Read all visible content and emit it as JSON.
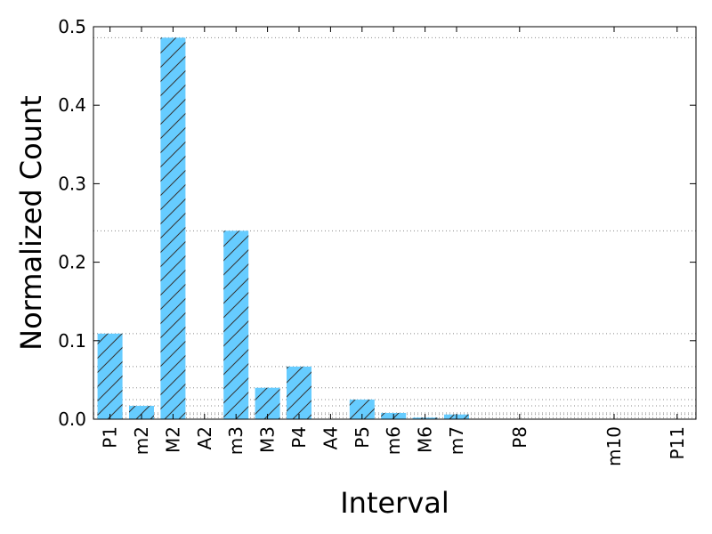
{
  "chart_data": {
    "type": "bar",
    "xlabel": "Interval",
    "ylabel": "Normalized Count",
    "ylim": [
      0,
      0.5
    ],
    "yticks": [
      "0.0",
      "0.1",
      "0.2",
      "0.3",
      "0.4",
      "0.5"
    ],
    "grid": "horizontal dotted lines at each bar height",
    "bar_color": "#66ccff",
    "hatch": "diagonal",
    "bars": [
      {
        "label": "P1",
        "value": 0.109
      },
      {
        "label": "m2",
        "value": 0.017
      },
      {
        "label": "M2",
        "value": 0.486
      },
      {
        "label": "A2",
        "value": 0.0
      },
      {
        "label": "m3",
        "value": 0.24
      },
      {
        "label": "M3",
        "value": 0.04
      },
      {
        "label": "P4",
        "value": 0.067
      },
      {
        "label": "A4",
        "value": 0.0
      },
      {
        "label": "P5",
        "value": 0.025
      },
      {
        "label": "m6",
        "value": 0.008
      },
      {
        "label": "M6",
        "value": 0.002
      },
      {
        "label": "m7",
        "value": 0.006
      },
      {
        "label": "P8",
        "value": 0.0,
        "slot": 13
      },
      {
        "label": "m10",
        "value": 0.0,
        "slot": 16
      },
      {
        "label": "P11",
        "value": 0.0,
        "slot": 18
      }
    ]
  }
}
